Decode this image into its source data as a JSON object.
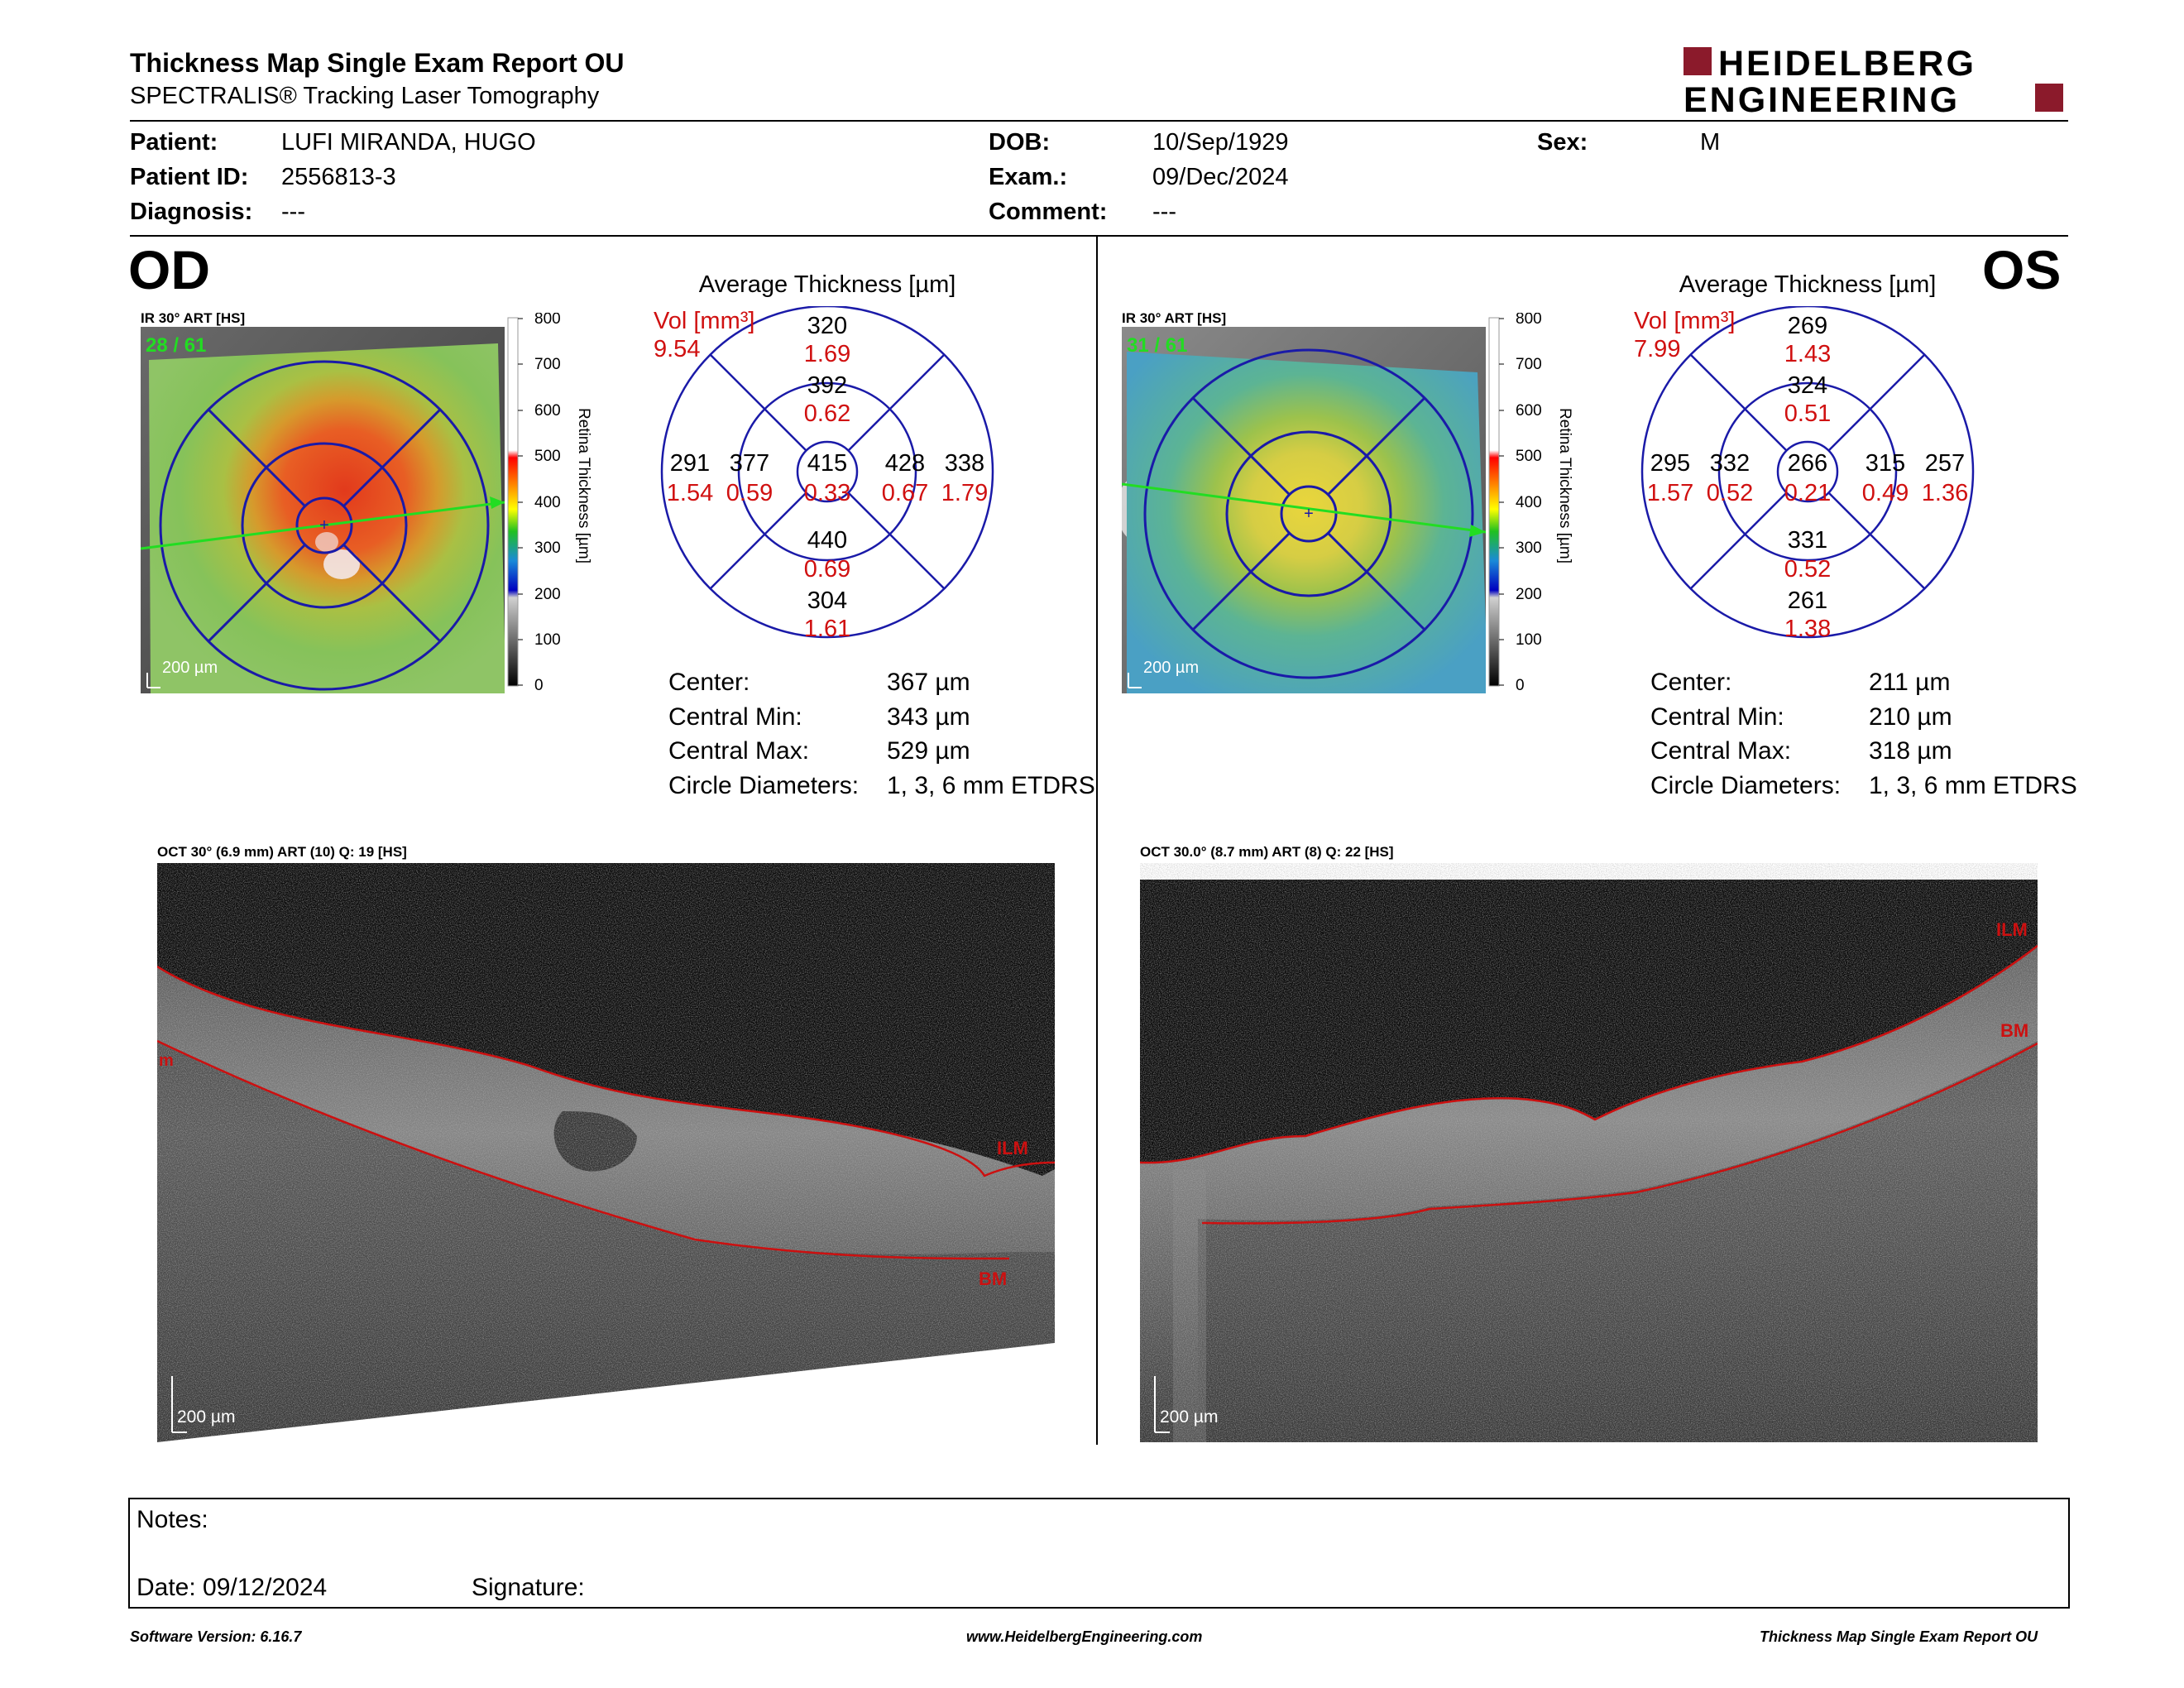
{
  "header": {
    "title": "Thickness Map Single Exam Report OU",
    "subtitle": "SPECTRALIS® Tracking Laser Tomography",
    "brand_line1": "HEIDELBERG",
    "brand_line2": "ENGINEERING",
    "brand_color": "#8b1a2b"
  },
  "patient": {
    "patient_label": "Patient:",
    "patient_value": "LUFI MIRANDA, HUGO",
    "id_label": "Patient ID:",
    "id_value": "2556813-3",
    "diagnosis_label": "Diagnosis:",
    "diagnosis_value": "---",
    "dob_label": "DOB:",
    "dob_value": "10/Sep/1929",
    "exam_label": "Exam.:",
    "exam_value": "09/Dec/2024",
    "comment_label": "Comment:",
    "comment_value": "---",
    "sex_label": "Sex:",
    "sex_value": "M"
  },
  "od": {
    "eye": "OD",
    "ir_label": "IR 30° ART [HS]",
    "frames": "28 / 61",
    "scale": "200 µm",
    "colorbar_ticks": [
      "800",
      "700",
      "600",
      "500",
      "400",
      "300",
      "200",
      "100",
      "0"
    ],
    "colorbar_title": "Retina Thickness [µm]",
    "avg_title": "Average Thickness [µm]",
    "vol_label": "Vol [mm³]",
    "vol_total": "9.54",
    "sectors": {
      "outer_superior": {
        "t": "320",
        "v": "1.69"
      },
      "inner_superior": {
        "t": "392",
        "v": "0.62"
      },
      "outer_nasal_left": {
        "t": "291",
        "v": "1.54"
      },
      "inner_left": {
        "t": "377",
        "v": "0.59"
      },
      "center": {
        "t": "415",
        "v": "0.33"
      },
      "inner_right": {
        "t": "428",
        "v": "0.67"
      },
      "outer_right": {
        "t": "338",
        "v": "1.79"
      },
      "inner_inferior": {
        "t": "440",
        "v": "0.69"
      },
      "outer_inferior": {
        "t": "304",
        "v": "1.61"
      }
    },
    "stats": {
      "center_label": "Center:",
      "center_value": "367 µm",
      "min_label": "Central Min:",
      "min_value": "343 µm",
      "max_label": "Central Max:",
      "max_value": "529 µm",
      "diam_label": "Circle Diameters:",
      "diam_value": "1, 3, 6 mm ETDRS"
    },
    "oct_label": "OCT 30° (6.9 mm) ART (10) Q: 19 [HS]",
    "oct_scale": "200 µm",
    "ilm": "ILM",
    "bm": "BM",
    "ilm_left": "m"
  },
  "os": {
    "eye": "OS",
    "ir_label": "IR 30° ART [HS]",
    "frames": "31 / 61",
    "scale": "200 µm",
    "colorbar_ticks": [
      "800",
      "700",
      "600",
      "500",
      "400",
      "300",
      "200",
      "100",
      "0"
    ],
    "colorbar_title": "Retina Thickness [µm]",
    "avg_title": "Average Thickness [µm]",
    "vol_label": "Vol [mm³]",
    "vol_total": "7.99",
    "sectors": {
      "outer_superior": {
        "t": "269",
        "v": "1.43"
      },
      "inner_superior": {
        "t": "324",
        "v": "0.51"
      },
      "outer_nasal_left": {
        "t": "295",
        "v": "1.57"
      },
      "inner_left": {
        "t": "332",
        "v": "0.52"
      },
      "center": {
        "t": "266",
        "v": "0.21"
      },
      "inner_right": {
        "t": "315",
        "v": "0.49"
      },
      "outer_right": {
        "t": "257",
        "v": "1.36"
      },
      "inner_inferior": {
        "t": "331",
        "v": "0.52"
      },
      "outer_inferior": {
        "t": "261",
        "v": "1.38"
      }
    },
    "stats": {
      "center_label": "Center:",
      "center_value": "211 µm",
      "min_label": "Central Min:",
      "min_value": "210 µm",
      "max_label": "Central Max:",
      "max_value": "318 µm",
      "diam_label": "Circle Diameters:",
      "diam_value": "1, 3, 6 mm ETDRS"
    },
    "oct_label": "OCT 30.0° (8.7 mm) ART (8) Q: 22 [HS]",
    "oct_scale": "200 µm",
    "ilm": "ILM",
    "bm": "BM"
  },
  "notes": {
    "notes_label": "Notes:",
    "date_label": "Date: 09/12/2024",
    "signature_label": "Signature:"
  },
  "footer": {
    "software": "Software Version: 6.16.7",
    "website": "www.HeidelbergEngineering.com",
    "report": "Thickness Map Single Exam Report OU"
  },
  "colors": {
    "sector_lines": "#1a1aa8",
    "volume_red": "#d01010",
    "axis_green": "#22dd22",
    "layer_red": "#cc1010"
  }
}
